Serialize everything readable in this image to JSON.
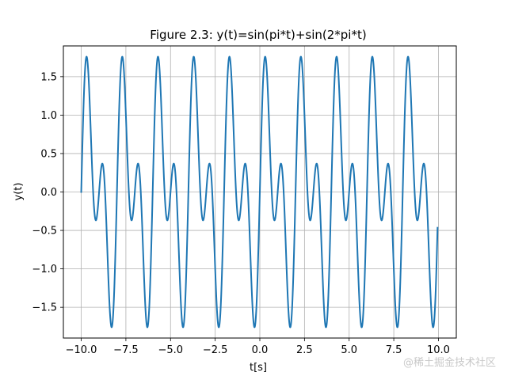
{
  "chart_data": {
    "type": "line",
    "title": "Figure 2.3: y(t)=sin(pi*t)+sin(2*pi*t)",
    "xlabel": "t[s]",
    "ylabel": "y(t)",
    "xlim": [
      -11.0,
      11.0
    ],
    "ylim": [
      -1.9,
      1.9
    ],
    "grid": true,
    "x_ticks": [
      -10.0,
      -7.5,
      -5.0,
      -2.5,
      0.0,
      2.5,
      5.0,
      7.5,
      10.0
    ],
    "x_tick_labels": [
      "−10.0",
      "−7.5",
      "−5.0",
      "−2.5",
      "0.0",
      "2.5",
      "5.0",
      "7.5",
      "10.0"
    ],
    "y_ticks": [
      -1.5,
      -1.0,
      -0.5,
      0.0,
      0.5,
      1.0,
      1.5
    ],
    "y_tick_labels": [
      "−1.5",
      "−1.0",
      "−0.5",
      "0.0",
      "0.5",
      "1.0",
      "1.5"
    ],
    "series": [
      {
        "function": "sin(pi*t)+sin(2*pi*t)",
        "x_range": [
          -10.0,
          9.95
        ],
        "color": "#1f77b4"
      }
    ]
  },
  "watermark": "@稀土掘金技术社区"
}
